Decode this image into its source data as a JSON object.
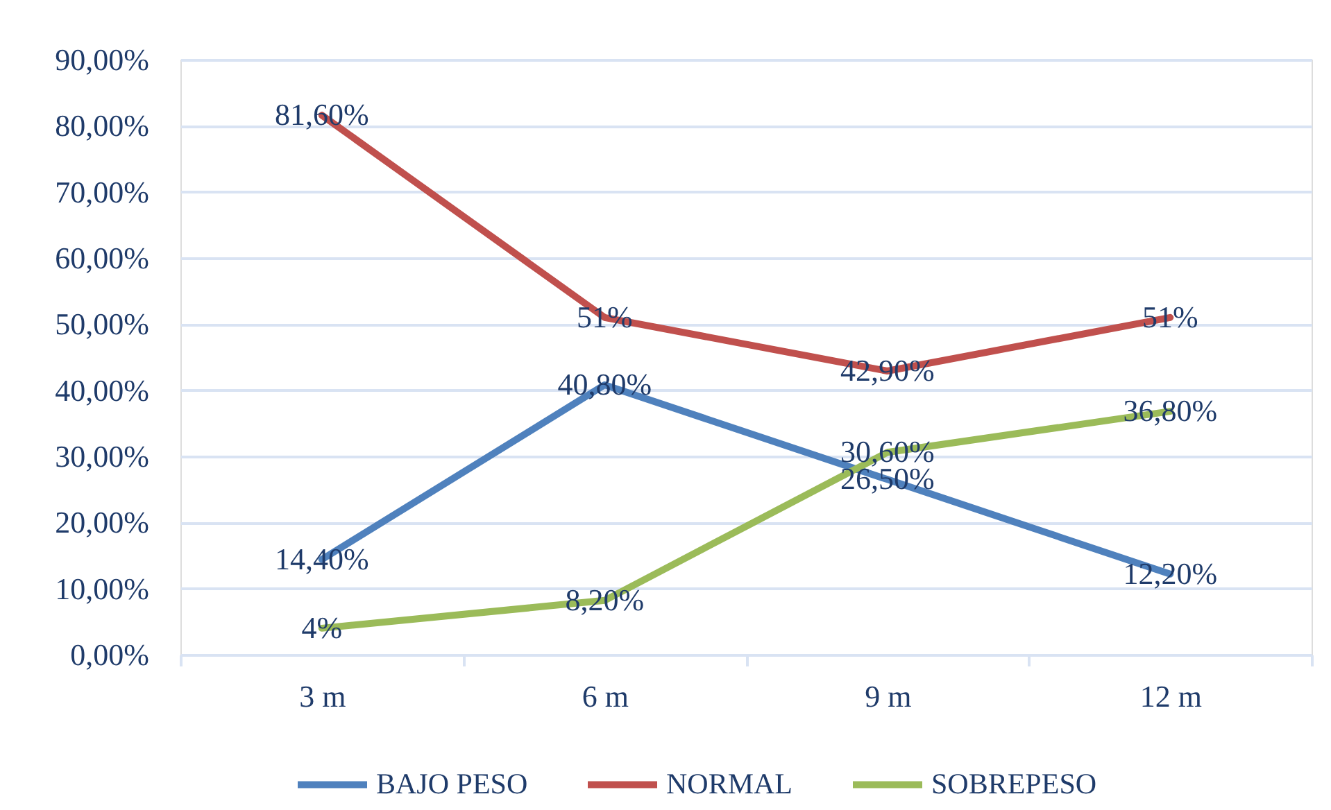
{
  "chart_data": {
    "type": "line",
    "categories": [
      "3 m",
      "6 m",
      "9 m",
      "12 m"
    ],
    "series": [
      {
        "name": "BAJO PESO",
        "color": "#4f81bd",
        "values": [
          14.4,
          40.8,
          26.5,
          12.2
        ],
        "value_labels": [
          "14,40%",
          "40,80%",
          "26,50%",
          "12,20%"
        ]
      },
      {
        "name": "NORMAL",
        "color": "#c0504d",
        "values": [
          81.6,
          51,
          42.9,
          51
        ],
        "value_labels": [
          "81,60%",
          "51%",
          "42,90%",
          "51%"
        ]
      },
      {
        "name": "SOBREPESO",
        "color": "#9bbb59",
        "values": [
          4,
          8.2,
          30.6,
          36.8
        ],
        "value_labels": [
          "4%",
          "8,20%",
          "30,60%",
          "36,80%"
        ]
      }
    ],
    "ylim": [
      0,
      90
    ],
    "yticks": [
      {
        "value": 0,
        "label": "0,00%"
      },
      {
        "value": 10,
        "label": "10,00%"
      },
      {
        "value": 20,
        "label": "20,00%"
      },
      {
        "value": 30,
        "label": "30,00%"
      },
      {
        "value": 40,
        "label": "40,00%"
      },
      {
        "value": 50,
        "label": "50,00%"
      },
      {
        "value": 60,
        "label": "60,00%"
      },
      {
        "value": 70,
        "label": "70,00%"
      },
      {
        "value": 80,
        "label": "80,00%"
      },
      {
        "value": 90,
        "label": "90,00%"
      }
    ],
    "grid": "y",
    "legend": "bottom",
    "line_style": "solid"
  }
}
